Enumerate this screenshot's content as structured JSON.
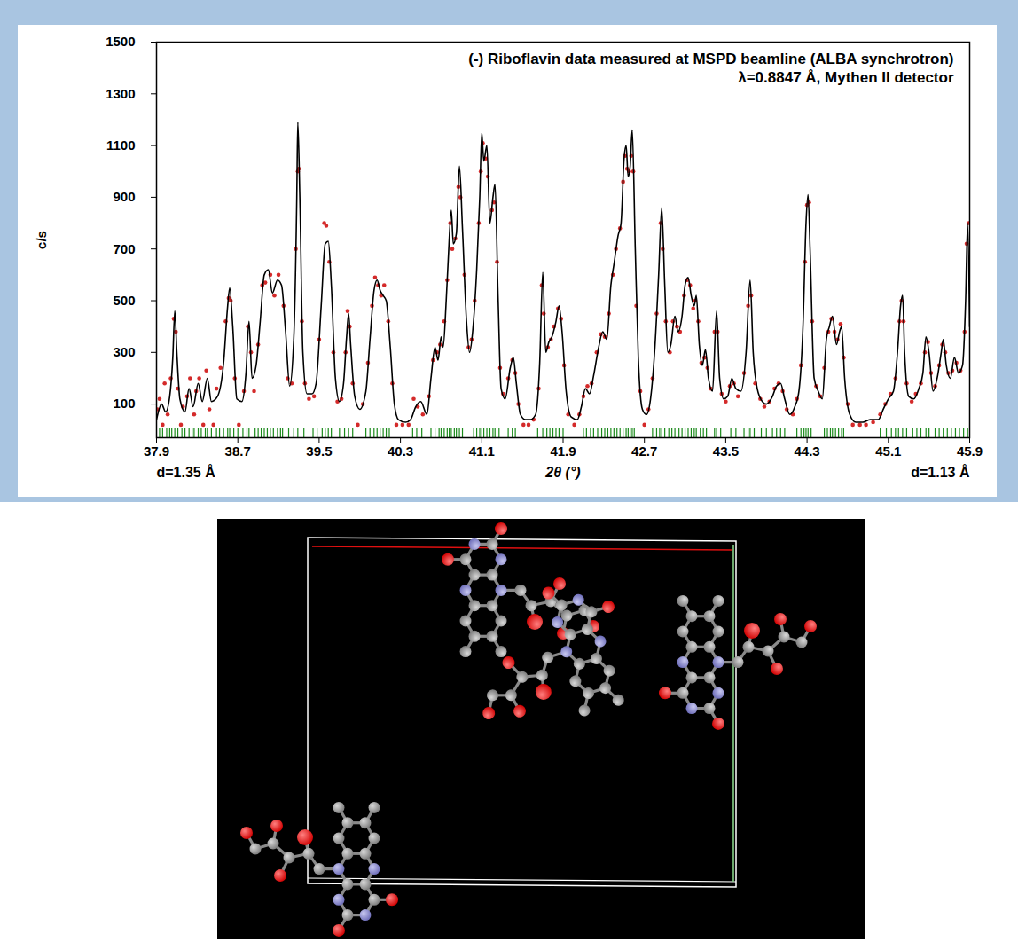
{
  "chart_data": {
    "type": "line",
    "title": "(-) Riboflavin data measured at MSPD beamline (ALBA synchrotron)",
    "subtitle": "λ=0.8847 Å, Mythen II detector",
    "x_label": "2θ (°)",
    "y_label": "c/s",
    "annotations": [
      "d=1.35 Å",
      "d=1.13 Å"
    ],
    "xlim": [
      37.9,
      45.9
    ],
    "xticks": [
      37.9,
      38.7,
      39.5,
      40.3,
      41.1,
      41.9,
      42.7,
      43.5,
      44.3,
      45.1,
      45.9
    ],
    "ylim": [
      -30,
      1500
    ],
    "yticks": [
      100,
      300,
      500,
      700,
      900,
      1100,
      1300,
      1500
    ],
    "grid": false,
    "series": [
      {
        "type": "scatter",
        "color": "#d42a2a",
        "marker": "circle",
        "x": [
          37.91,
          37.93,
          37.96,
          37.98,
          38.01,
          38.04,
          38.07,
          38.09,
          38.11,
          38.14,
          38.16,
          38.2,
          38.23,
          38.27,
          38.29,
          38.32,
          38.36,
          38.39,
          38.42,
          38.46,
          38.49,
          38.53,
          38.58,
          38.61,
          38.63,
          38.67,
          38.71,
          38.76,
          38.8,
          38.83,
          38.86,
          38.9,
          38.94,
          38.97,
          39.02,
          39.06,
          39.1,
          39.15,
          39.19,
          39.23,
          39.27,
          39.29,
          39.3,
          39.33,
          39.36,
          39.4,
          39.45,
          39.5,
          39.55,
          39.57,
          39.6,
          39.64,
          39.68,
          39.72,
          39.76,
          39.78,
          39.8,
          39.83,
          39.88,
          39.93,
          39.98,
          40.02,
          40.05,
          40.08,
          40.11,
          40.14,
          40.18,
          40.22,
          40.26,
          40.32,
          40.38,
          40.43,
          40.47,
          40.52,
          40.58,
          40.62,
          40.66,
          40.69,
          40.73,
          40.76,
          40.79,
          40.81,
          40.84,
          40.87,
          40.89,
          40.93,
          40.97,
          41.0,
          41.03,
          41.07,
          41.09,
          41.11,
          41.14,
          41.16,
          41.2,
          41.22,
          41.25,
          41.28,
          41.31,
          41.36,
          41.4,
          41.43,
          41.46,
          41.51,
          41.56,
          41.61,
          41.66,
          41.69,
          41.71,
          41.75,
          41.78,
          41.81,
          41.85,
          41.88,
          41.91,
          41.95,
          42.01,
          42.06,
          42.1,
          42.14,
          42.18,
          42.23,
          42.27,
          42.31,
          42.35,
          42.39,
          42.42,
          42.46,
          42.49,
          42.51,
          42.53,
          42.55,
          42.57,
          42.59,
          42.62,
          42.66,
          42.7,
          42.74,
          42.78,
          42.82,
          42.86,
          42.88,
          42.91,
          42.95,
          42.98,
          43.02,
          43.05,
          43.09,
          43.12,
          43.15,
          43.18,
          43.2,
          43.23,
          43.26,
          43.29,
          43.32,
          43.35,
          43.39,
          43.42,
          43.46,
          43.5,
          43.54,
          43.58,
          43.62,
          43.68,
          43.72,
          43.75,
          43.79,
          43.84,
          43.88,
          43.93,
          43.98,
          44.02,
          44.06,
          44.1,
          44.16,
          44.2,
          44.24,
          44.28,
          44.3,
          44.32,
          44.35,
          44.39,
          44.43,
          44.47,
          44.51,
          44.54,
          44.57,
          44.6,
          44.63,
          44.66,
          44.7,
          44.75,
          44.82,
          44.88,
          44.95,
          45.02,
          45.07,
          45.12,
          45.17,
          45.21,
          45.23,
          45.25,
          45.28,
          45.33,
          45.37,
          45.42,
          45.46,
          45.49,
          45.52,
          45.56,
          45.6,
          45.63,
          45.66,
          45.69,
          45.73,
          45.77,
          45.81,
          45.85,
          45.87,
          45.89
        ],
        "values": [
          80,
          120,
          20,
          180,
          60,
          200,
          430,
          380,
          160,
          20,
          90,
          130,
          200,
          60,
          150,
          200,
          20,
          230,
          80,
          20,
          160,
          240,
          420,
          510,
          500,
          200,
          20,
          150,
          400,
          300,
          150,
          330,
          560,
          570,
          600,
          520,
          600,
          480,
          200,
          180,
          700,
          1000,
          1010,
          420,
          180,
          120,
          130,
          350,
          800,
          790,
          650,
          300,
          110,
          120,
          300,
          460,
          400,
          180,
          20,
          100,
          260,
          480,
          590,
          560,
          520,
          560,
          420,
          180,
          20,
          20,
          20,
          120,
          90,
          60,
          130,
          270,
          300,
          330,
          420,
          580,
          800,
          700,
          740,
          940,
          900,
          600,
          320,
          350,
          500,
          800,
          1000,
          1110,
          1050,
          980,
          850,
          880,
          650,
          240,
          140,
          200,
          270,
          220,
          100,
          20,
          20,
          40,
          160,
          560,
          450,
          320,
          350,
          400,
          470,
          430,
          250,
          60,
          20,
          60,
          130,
          170,
          180,
          300,
          370,
          360,
          450,
          600,
          700,
          780,
          960,
          1060,
          1010,
          1000,
          1060,
          1000,
          480,
          150,
          20,
          80,
          200,
          450,
          800,
          700,
          420,
          300,
          420,
          400,
          380,
          520,
          580,
          560,
          470,
          500,
          420,
          260,
          280,
          240,
          160,
          380,
          380,
          140,
          110,
          170,
          180,
          130,
          220,
          480,
          520,
          180,
          120,
          90,
          110,
          160,
          180,
          150,
          80,
          60,
          120,
          250,
          650,
          870,
          880,
          420,
          170,
          130,
          240,
          380,
          430,
          380,
          350,
          410,
          280,
          100,
          20,
          20,
          20,
          30,
          60,
          100,
          140,
          200,
          420,
          500,
          420,
          180,
          110,
          140,
          180,
          300,
          340,
          220,
          170,
          250,
          330,
          300,
          220,
          230,
          260,
          230,
          380,
          720,
          800
        ]
      },
      {
        "type": "line",
        "color": "#000000",
        "line_style": "solid",
        "x": [
          37.9,
          37.95,
          37.99,
          38.03,
          38.06,
          38.08,
          38.1,
          38.13,
          38.18,
          38.22,
          38.26,
          38.31,
          38.35,
          38.4,
          38.44,
          38.5,
          38.56,
          38.6,
          38.62,
          38.65,
          38.69,
          38.74,
          38.78,
          38.81,
          38.84,
          38.88,
          38.92,
          38.96,
          39.0,
          39.04,
          39.09,
          39.13,
          39.17,
          39.21,
          39.25,
          39.28,
          39.29,
          39.31,
          39.34,
          39.38,
          39.43,
          39.47,
          39.52,
          39.56,
          39.59,
          39.62,
          39.66,
          39.7,
          39.74,
          39.77,
          39.79,
          39.81,
          39.85,
          39.9,
          39.96,
          40.0,
          40.04,
          40.07,
          40.1,
          40.13,
          40.16,
          40.2,
          40.24,
          40.28,
          40.35,
          40.4,
          40.45,
          40.5,
          40.56,
          40.6,
          40.64,
          40.67,
          40.7,
          40.72,
          40.75,
          40.77,
          40.8,
          40.82,
          40.85,
          40.88,
          40.91,
          40.95,
          40.98,
          41.01,
          41.05,
          41.08,
          41.1,
          41.12,
          41.15,
          41.18,
          41.21,
          41.23,
          41.26,
          41.29,
          41.33,
          41.38,
          41.41,
          41.44,
          41.48,
          41.53,
          41.58,
          41.63,
          41.67,
          41.7,
          41.73,
          41.76,
          41.79,
          41.83,
          41.86,
          41.89,
          41.93,
          41.98,
          42.04,
          42.08,
          42.12,
          42.16,
          42.2,
          42.25,
          42.29,
          42.33,
          42.37,
          42.4,
          42.44,
          42.47,
          42.5,
          42.52,
          42.54,
          42.56,
          42.58,
          42.61,
          42.64,
          42.68,
          42.72,
          42.76,
          42.8,
          42.84,
          42.87,
          42.9,
          42.93,
          42.96,
          43.0,
          43.03,
          43.07,
          43.1,
          43.13,
          43.16,
          43.19,
          43.21,
          43.24,
          43.27,
          43.3,
          43.33,
          43.37,
          43.41,
          43.44,
          43.48,
          43.52,
          43.56,
          43.6,
          43.65,
          43.7,
          43.74,
          43.77,
          43.81,
          43.86,
          43.9,
          43.96,
          44.0,
          44.04,
          44.08,
          44.13,
          44.18,
          44.22,
          44.26,
          44.29,
          44.31,
          44.33,
          44.37,
          44.41,
          44.45,
          44.49,
          44.52,
          44.55,
          44.59,
          44.62,
          44.64,
          44.67,
          44.72,
          44.78,
          44.85,
          44.92,
          45.0,
          45.05,
          45.1,
          45.15,
          45.19,
          45.22,
          45.24,
          45.26,
          45.3,
          45.35,
          45.4,
          45.44,
          45.47,
          45.5,
          45.54,
          45.58,
          45.62,
          45.64,
          45.67,
          45.71,
          45.75,
          45.79,
          45.83,
          45.86,
          45.88,
          45.9
        ],
        "values": [
          40,
          100,
          70,
          130,
          280,
          460,
          300,
          120,
          70,
          160,
          90,
          180,
          110,
          200,
          110,
          130,
          260,
          480,
          550,
          400,
          120,
          110,
          220,
          420,
          200,
          250,
          420,
          600,
          620,
          530,
          580,
          560,
          380,
          170,
          350,
          900,
          1190,
          900,
          300,
          140,
          140,
          180,
          480,
          720,
          730,
          560,
          200,
          110,
          180,
          360,
          450,
          330,
          130,
          80,
          150,
          350,
          540,
          580,
          540,
          520,
          500,
          320,
          100,
          40,
          30,
          40,
          90,
          110,
          60,
          200,
          320,
          270,
          360,
          320,
          500,
          660,
          850,
          720,
          760,
          1020,
          780,
          420,
          300,
          380,
          620,
          900,
          1150,
          1040,
          1100,
          800,
          900,
          950,
          520,
          160,
          120,
          240,
          280,
          180,
          60,
          40,
          40,
          60,
          260,
          610,
          300,
          340,
          360,
          420,
          480,
          380,
          150,
          50,
          40,
          90,
          160,
          140,
          210,
          320,
          380,
          350,
          560,
          640,
          750,
          800,
          1050,
          1100,
          980,
          1020,
          1160,
          700,
          280,
          80,
          60,
          120,
          300,
          600,
          860,
          560,
          300,
          330,
          440,
          380,
          440,
          560,
          590,
          520,
          480,
          520,
          330,
          250,
          310,
          200,
          150,
          460,
          200,
          120,
          130,
          200,
          160,
          150,
          300,
          580,
          300,
          160,
          110,
          100,
          130,
          170,
          180,
          120,
          60,
          90,
          150,
          400,
          800,
          910,
          700,
          200,
          150,
          120,
          350,
          400,
          440,
          330,
          380,
          400,
          200,
          60,
          30,
          30,
          40,
          40,
          80,
          120,
          150,
          300,
          480,
          520,
          300,
          130,
          120,
          160,
          220,
          360,
          300,
          150,
          200,
          300,
          350,
          250,
          200,
          280,
          220,
          250,
          500,
          800,
          400
        ]
      },
      {
        "type": "tick",
        "color": "#1a8a1a",
        "x": [
          37.93,
          37.96,
          38.0,
          38.03,
          38.05,
          38.08,
          38.11,
          38.15,
          38.18,
          38.22,
          38.25,
          38.27,
          38.31,
          38.34,
          38.38,
          38.4,
          38.44,
          38.49,
          38.52,
          38.56,
          38.6,
          38.62,
          38.66,
          38.7,
          38.75,
          38.79,
          38.81,
          38.87,
          38.9,
          38.93,
          38.96,
          38.99,
          39.02,
          39.05,
          39.09,
          39.12,
          39.14,
          39.2,
          39.25,
          39.29,
          39.35,
          39.44,
          39.48,
          39.53,
          39.56,
          39.59,
          39.62,
          39.7,
          39.75,
          39.79,
          39.83,
          39.96,
          40.0,
          40.04,
          40.07,
          40.1,
          40.13,
          40.16,
          40.19,
          40.42,
          40.46,
          40.51,
          40.6,
          40.64,
          40.68,
          40.7,
          40.73,
          40.76,
          40.78,
          40.8,
          40.83,
          40.85,
          40.88,
          40.91,
          41.02,
          41.05,
          41.08,
          41.1,
          41.12,
          41.15,
          41.18,
          41.21,
          41.23,
          41.27,
          41.36,
          41.4,
          41.43,
          41.65,
          41.7,
          41.74,
          41.77,
          41.8,
          41.83,
          41.86,
          41.9,
          42.1,
          42.13,
          42.17,
          42.2,
          42.24,
          42.28,
          42.31,
          42.34,
          42.37,
          42.4,
          42.43,
          42.46,
          42.49,
          42.52,
          42.54,
          42.56,
          42.58,
          42.6,
          42.78,
          42.82,
          42.85,
          42.87,
          42.9,
          42.94,
          42.97,
          43.0,
          43.04,
          43.07,
          43.1,
          43.13,
          43.16,
          43.19,
          43.21,
          43.25,
          43.28,
          43.31,
          43.39,
          43.41,
          43.45,
          43.55,
          43.6,
          43.68,
          43.72,
          43.74,
          43.78,
          43.85,
          43.9,
          43.96,
          44.0,
          44.04,
          44.08,
          44.2,
          44.24,
          44.27,
          44.29,
          44.31,
          44.34,
          44.47,
          44.5,
          44.53,
          44.55,
          44.58,
          44.61,
          44.64,
          44.66,
          45.02,
          45.08,
          45.13,
          45.17,
          45.2,
          45.24,
          45.28,
          45.34,
          45.38,
          45.42,
          45.47,
          45.5,
          45.56,
          45.6,
          45.64,
          45.68,
          45.72,
          45.76,
          45.8,
          45.84,
          45.88
        ]
      }
    ]
  }
}
